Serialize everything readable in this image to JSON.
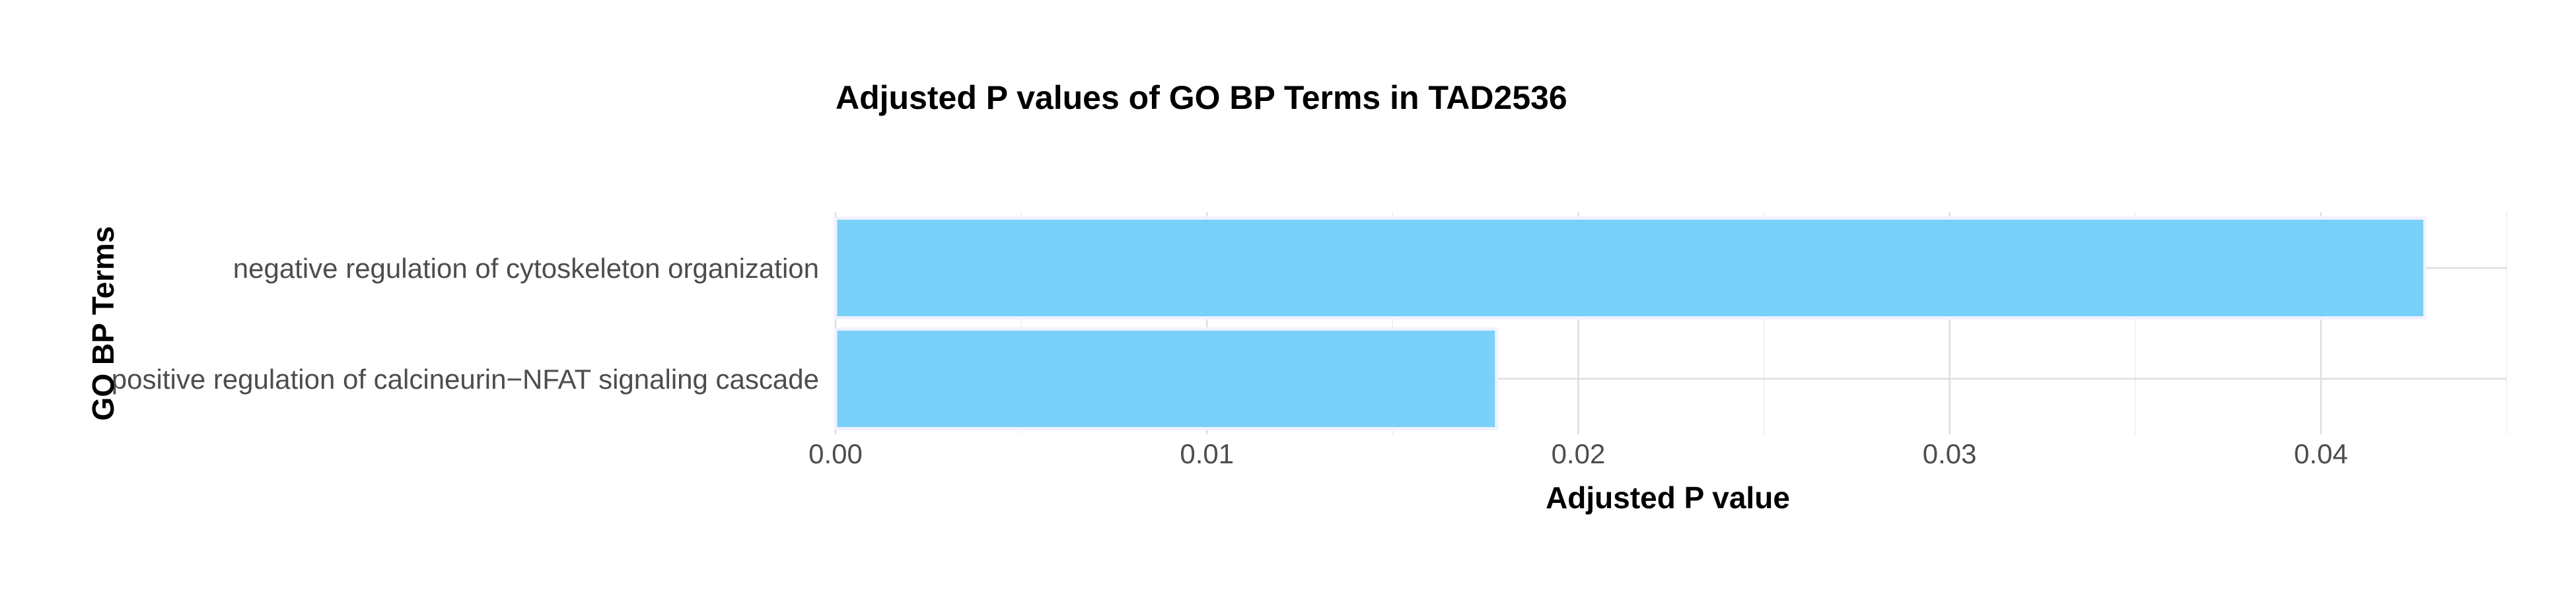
{
  "chart_data": {
    "type": "bar",
    "orientation": "horizontal",
    "title": "Adjusted P values of GO BP Terms in TAD2536",
    "xlabel": "Adjusted P value",
    "ylabel": "GO BP Terms",
    "categories": [
      "negative regulation of cytoskeleton organization",
      "positive regulation of calcineurin−NFAT signaling cascade"
    ],
    "values": [
      0.0428,
      0.0178
    ],
    "xlim": [
      0,
      0.045
    ],
    "xticks": [
      0.0,
      0.01,
      0.02,
      0.03,
      0.04
    ],
    "xtick_labels": [
      "0.00",
      "0.01",
      "0.02",
      "0.03",
      "0.04"
    ],
    "bar_color": "#75cff9",
    "bar_outline": "#f2f2ff",
    "grid": true,
    "legend": "none"
  }
}
